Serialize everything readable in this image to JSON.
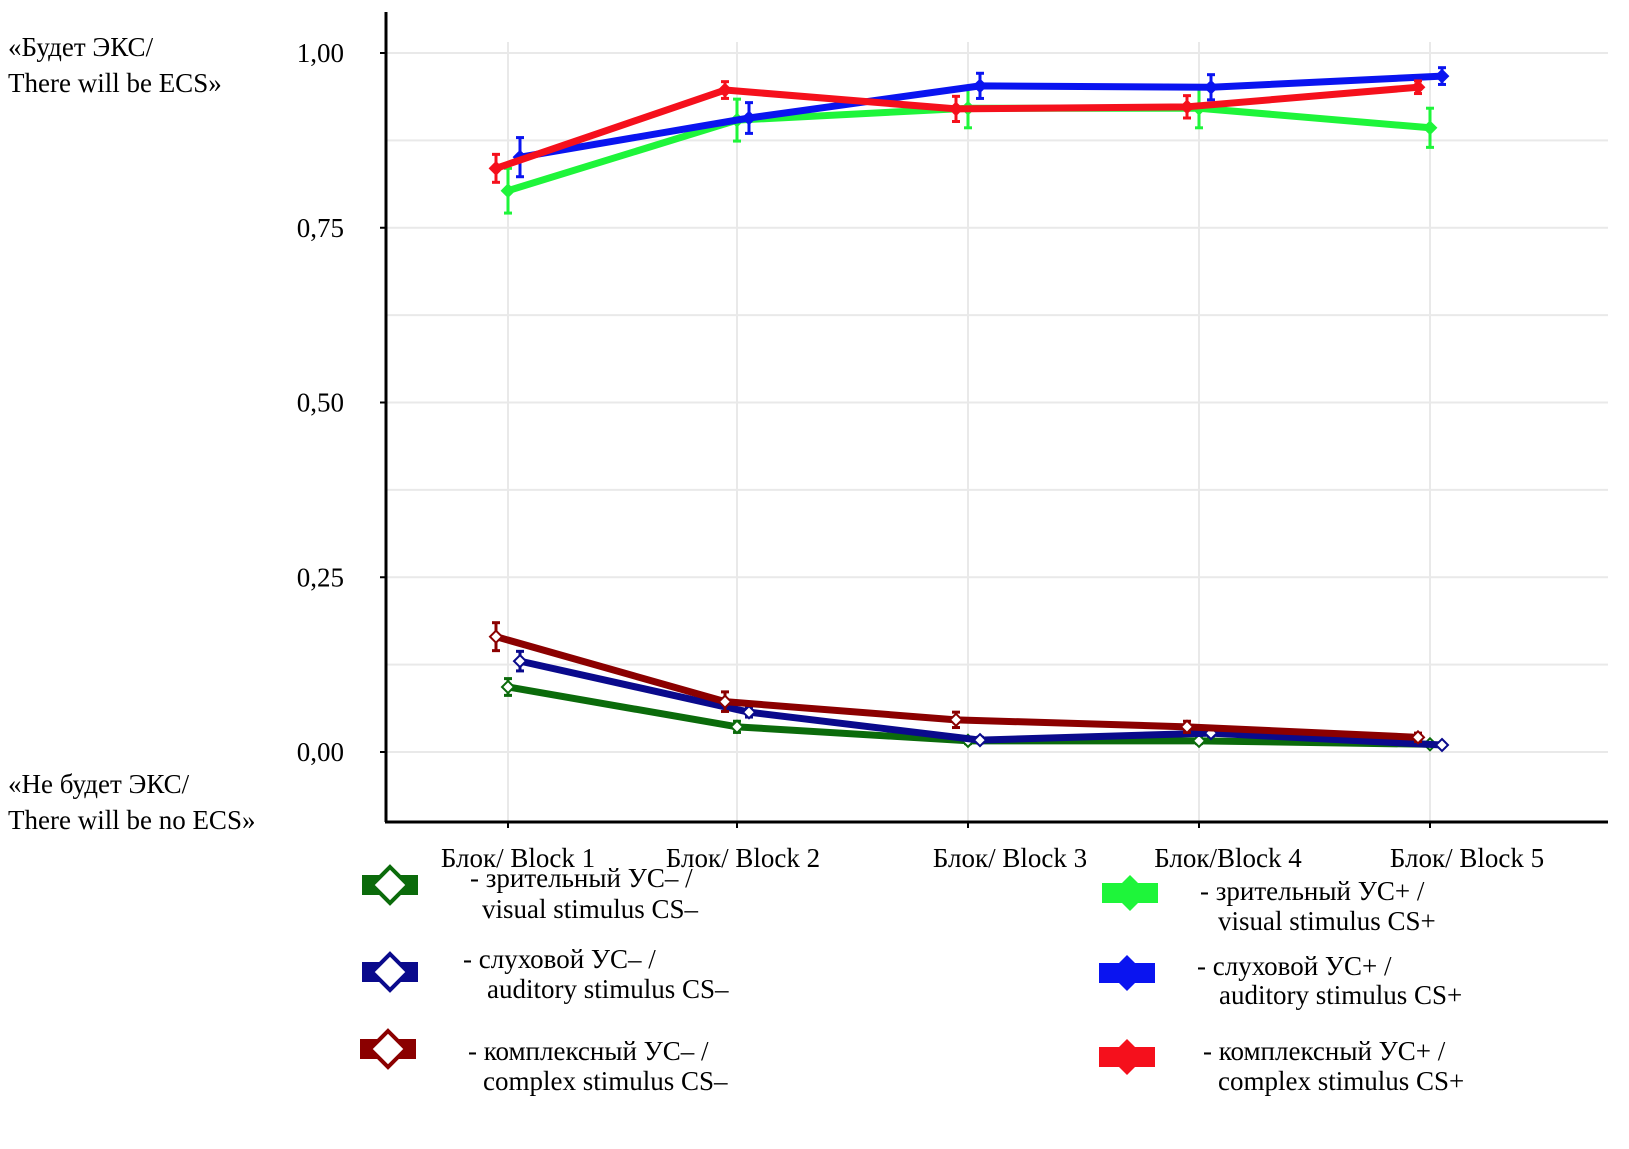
{
  "chart_data": {
    "type": "line",
    "title": "",
    "xlabel": "",
    "ylabel": "",
    "y_top_label": [
      "«Будет ЭКС/",
      "There will be ECS»"
    ],
    "y_bottom_label": [
      "«Не будет ЭКС/",
      "There will be no ECS»"
    ],
    "categories": [
      "Блок/ Block 1",
      "Блок/ Block 2",
      "Блок/ Block 3",
      "Блок/Block  4",
      "Блок/ Block 5"
    ],
    "ylim": [
      0,
      1.0
    ],
    "yticks": [
      0,
      0.25,
      0.5,
      0.75,
      1.0
    ],
    "ytick_labels": [
      "0,00",
      "0,25",
      "0,50",
      "0,75",
      "1,00"
    ],
    "grid": true,
    "legend_position": "bottom",
    "series": [
      {
        "name": "visual stimulus CS–",
        "label_ru": "- зрительный УС– /",
        "label_en": "visual stimulus CS–",
        "color": "#0b6b0b",
        "marker": "hollow-diamond",
        "values": [
          0.093,
          0.036,
          0.016,
          0.016,
          0.011
        ],
        "errors": [
          0.012,
          0.008,
          0.004,
          0.004,
          0.003
        ]
      },
      {
        "name": "auditory stimulus CS–",
        "label_ru": "- слуховой УС– /",
        "label_en": "auditory stimulus CS–",
        "color": "#0a0a8c",
        "marker": "hollow-diamond",
        "values": [
          0.13,
          0.057,
          0.017,
          0.027,
          0.01
        ],
        "errors": [
          0.014,
          0.007,
          0.004,
          0.004,
          0.003
        ]
      },
      {
        "name": "complex stimulus CS–",
        "label_ru": "- комплексный УС– /",
        "label_en": "complex stimulus CS–",
        "color": "#8b0000",
        "marker": "hollow-diamond",
        "values": [
          0.165,
          0.072,
          0.046,
          0.036,
          0.021
        ],
        "errors": [
          0.02,
          0.014,
          0.011,
          0.008,
          0.006
        ]
      },
      {
        "name": "visual stimulus CS+",
        "label_ru": "- зрительный УС+ /",
        "label_en": "visual stimulus CS+",
        "color": "#1ef53a",
        "marker": "filled-diamond",
        "values": [
          0.803,
          0.904,
          0.921,
          0.921,
          0.893
        ],
        "errors": [
          0.032,
          0.03,
          0.028,
          0.028,
          0.028
        ]
      },
      {
        "name": "auditory stimulus CS+",
        "label_ru": "- слуховой УС+ /",
        "label_en": "auditory stimulus CS+",
        "color": "#0a14f0",
        "marker": "filled-diamond",
        "values": [
          0.851,
          0.907,
          0.953,
          0.951,
          0.967
        ],
        "errors": [
          0.028,
          0.022,
          0.018,
          0.018,
          0.012
        ]
      },
      {
        "name": "complex stimulus CS+",
        "label_ru": "- комплексный УС+ /",
        "label_en": "complex stimulus CS+",
        "color": "#f5101c",
        "marker": "filled-diamond",
        "values": [
          0.835,
          0.947,
          0.92,
          0.923,
          0.951
        ],
        "errors": [
          0.02,
          0.012,
          0.018,
          0.016,
          0.009
        ]
      }
    ]
  }
}
